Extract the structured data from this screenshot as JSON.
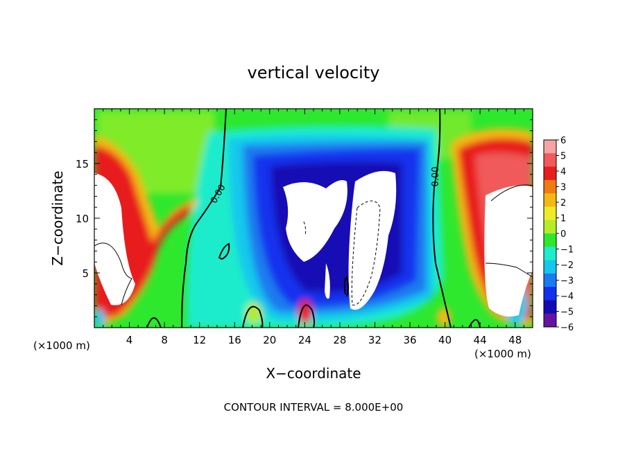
{
  "chart_data": {
    "type": "heatmap",
    "title": "vertical velocity",
    "xlabel": "X−coordinate",
    "ylabel": "Z−coordinate",
    "x_unit_label": "(×1000 m)",
    "x_unit_label_right": "(×1000 m)",
    "xlim": [
      0,
      50
    ],
    "ylim": [
      0,
      20
    ],
    "x_ticks": [
      4,
      8,
      12,
      16,
      20,
      24,
      28,
      32,
      36,
      40,
      44,
      48
    ],
    "y_ticks": [
      5,
      10,
      15
    ],
    "colorbar": {
      "levels": [
        6,
        5,
        4,
        3,
        2,
        1,
        0,
        -1,
        -2,
        -3,
        -4,
        -5,
        -6
      ],
      "level_labels": [
        "6",
        "5",
        "4",
        "3",
        "2",
        "1",
        "0",
        "−1",
        "−2",
        "−3",
        "−4",
        "−5",
        "−6"
      ],
      "colors": [
        "#f7a3a3",
        "#f05a5a",
        "#e81e1e",
        "#f07a14",
        "#f4b814",
        "#ecec28",
        "#b4ec28",
        "#2ee82e",
        "#1eeccc",
        "#14c8ec",
        "#1a7af0",
        "#1430ee",
        "#140ab4",
        "#6414a0"
      ]
    },
    "contour_labels": [
      "0.00",
      "0.00"
    ],
    "footer": "CONTOUR INTERVAL = 8.000E+00"
  }
}
